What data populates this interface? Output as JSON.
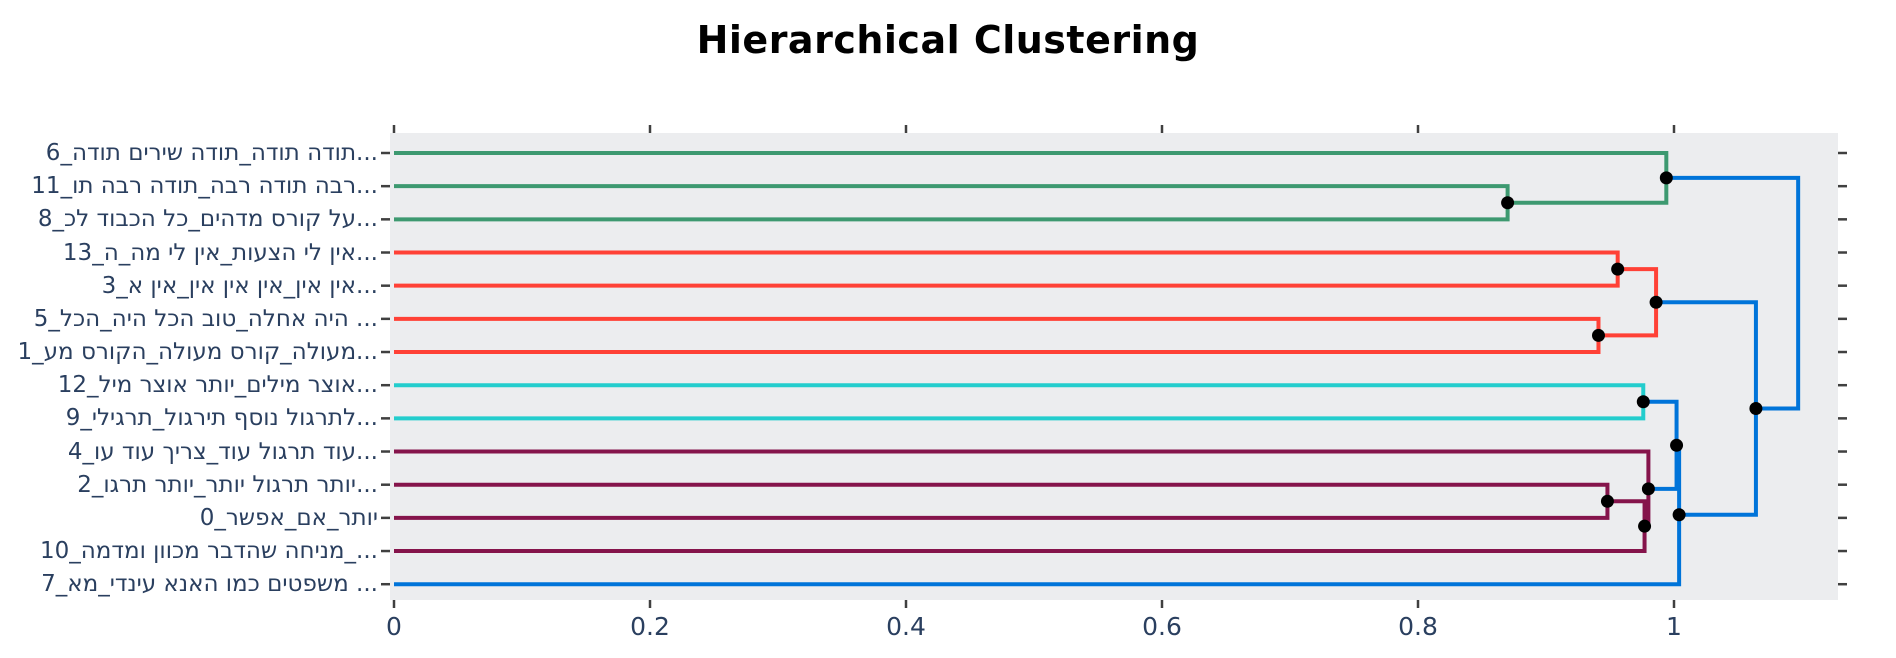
{
  "title": "Hierarchical Clustering",
  "colors": {
    "blue": "#0074D9",
    "cyan": "#23CDCD",
    "green": "#3D9970",
    "purple": "#85144B",
    "red": "#FF4136",
    "plot_bg": "#ECEDEF",
    "tick_mark": "#404040",
    "tick_label": "#2a3f5f",
    "dot": "#000000",
    "title_color": "#000000"
  },
  "chart_data": {
    "type": "dendrogram",
    "orientation": "horizontal-left-labels",
    "title": "Hierarchical Clustering",
    "x_axis": {
      "tick_labels": [
        "0",
        "0.2",
        "0.4",
        "0.6",
        "0.8",
        "1"
      ],
      "tick_values": [
        0,
        0.2,
        0.4,
        0.6,
        0.8,
        1.0
      ],
      "range": [
        -0.003,
        1.128
      ],
      "grid": false,
      "mirror_ticks_top": true
    },
    "y_axis": {
      "row_ticks_left": true,
      "row_ticks_right": true
    },
    "leaves": [
      {
        "row": 0,
        "id": 6,
        "label": "...תודה תודה_תודה שירים תודה_6",
        "cluster": "green"
      },
      {
        "row": 1,
        "id": 11,
        "label": "...רבה תודה רבה_תודה רבה תו_11",
        "cluster": "green"
      },
      {
        "row": 2,
        "id": 8,
        "label": "...על קורס מדהים_כל הכבוד לכ_8",
        "cluster": "green"
      },
      {
        "row": 3,
        "id": 13,
        "label": "...אין לי הצעות_אין לי מה_ה_13",
        "cluster": "red"
      },
      {
        "row": 4,
        "id": 3,
        "label": "...אין אין_אין אין אין_אין א_3",
        "cluster": "red"
      },
      {
        "row": 5,
        "id": 5,
        "label": "... היה אחלה_טוב הכל היה_הכל_5",
        "cluster": "red"
      },
      {
        "row": 6,
        "id": 1,
        "label": "...מעולה_קורס מעולה_הקורס מע_1",
        "cluster": "red"
      },
      {
        "row": 7,
        "id": 12,
        "label": "...אוצר מילים_יותר אוצר מיל_12",
        "cluster": "cyan"
      },
      {
        "row": 8,
        "id": 9,
        "label": "...לתרגול נוסף תירגול_תרגילי_9",
        "cluster": "cyan"
      },
      {
        "row": 9,
        "id": 4,
        "label": "...עוד תרגול עוד_צריך עוד עו_4",
        "cluster": "purple"
      },
      {
        "row": 10,
        "id": 2,
        "label": "...יותר תרגול יותר_יותר תרגו_2",
        "cluster": "purple"
      },
      {
        "row": 11,
        "id": 0,
        "label": "יותר_אם_אפשר_0",
        "cluster": "purple"
      },
      {
        "row": 12,
        "id": 10,
        "label": "..._מניחה שהדבר מכוון ומדמה_10",
        "cluster": "purple"
      },
      {
        "row": 13,
        "id": 7,
        "label": "... משפטים כמו האנא עינדי_מא_7",
        "cluster": "blue"
      }
    ],
    "merges": [
      {
        "name": "merge-11-8",
        "color": "green",
        "height": 0.87,
        "children": [
          [
            0,
            1
          ],
          [
            0,
            2
          ]
        ],
        "node_y": 1.5,
        "dot": true
      },
      {
        "name": "merge-6-green",
        "color": "green",
        "height": 0.994,
        "children": [
          [
            0,
            0
          ],
          [
            0.87,
            1.5
          ]
        ],
        "node_y": 0.75,
        "dot": true
      },
      {
        "name": "merge-13-3",
        "color": "red",
        "height": 0.956,
        "children": [
          [
            0,
            3
          ],
          [
            0,
            4
          ]
        ],
        "node_y": 3.5,
        "dot": true
      },
      {
        "name": "merge-5-1",
        "color": "red",
        "height": 0.941,
        "children": [
          [
            0,
            5
          ],
          [
            0,
            6
          ]
        ],
        "node_y": 5.5,
        "dot": true
      },
      {
        "name": "merge-red-root",
        "color": "red",
        "height": 0.986,
        "children": [
          [
            0.956,
            3.5
          ],
          [
            0.941,
            5.5
          ]
        ],
        "node_y": 4.5,
        "dot": true
      },
      {
        "name": "merge-12-9",
        "color": "cyan",
        "height": 0.976,
        "children": [
          [
            0,
            7
          ],
          [
            0,
            8
          ]
        ],
        "node_y": 7.5,
        "dot": true
      },
      {
        "name": "merge-2-0",
        "color": "purple",
        "height": 0.948,
        "children": [
          [
            0,
            10
          ],
          [
            0,
            11
          ]
        ],
        "node_y": 10.5,
        "dot": true
      },
      {
        "name": "merge-plus-10",
        "color": "purple",
        "height": 0.977,
        "children": [
          [
            0.948,
            10.5
          ],
          [
            0,
            12
          ]
        ],
        "node_y": 11.25,
        "dot": true
      },
      {
        "name": "merge-plus-4",
        "color": "purple",
        "height": 0.98,
        "children": [
          [
            0,
            9
          ],
          [
            0.977,
            11.25
          ]
        ],
        "node_y": 10.125,
        "dot": true
      },
      {
        "name": "merge-cyan-purple",
        "color": "blue",
        "height": 1.002,
        "children": [
          [
            0.976,
            7.5
          ],
          [
            0.98,
            10.125
          ]
        ],
        "node_y": 8.8125,
        "dot": true
      },
      {
        "name": "merge-plus-7",
        "color": "blue",
        "height": 1.004,
        "children": [
          [
            1.002,
            8.8125
          ],
          [
            0,
            13
          ]
        ],
        "node_y": 10.906,
        "dot": true
      },
      {
        "name": "merge-upper-blue",
        "color": "blue",
        "height": 1.064,
        "children": [
          [
            0.986,
            4.5
          ],
          [
            1.004,
            10.906
          ]
        ],
        "node_y": 7.703,
        "dot": true
      },
      {
        "name": "merge-root",
        "color": "blue",
        "height": 1.097,
        "children": [
          [
            0.994,
            0.75
          ],
          [
            1.064,
            7.703
          ]
        ],
        "node_y": 4.227,
        "dot": false
      }
    ]
  }
}
